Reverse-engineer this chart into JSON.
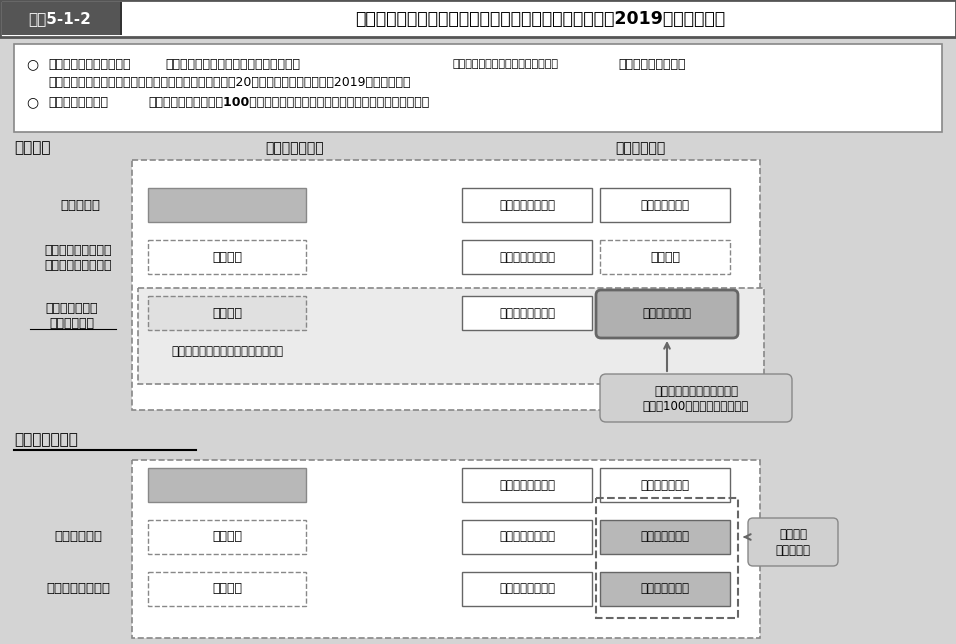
{
  "title_label": "図表5-1-2",
  "title_text": "国民年金第１号被保険者の産前産後期間の保険料免除（2019年４月施行）",
  "bg_color": "#d4d4d4",
  "white": "#ffffff",
  "box_gray": "#b8b8b8",
  "dark_box_gray": "#a0a0a0",
  "title_bg": "#555555",
  "section1_title": "国民年金",
  "hoken_header": "【保険料負担】",
  "nenkin_header": "【年金給付】",
  "row1_label": "全額納付者",
  "row2_line1": "【現行の免除制度】",
  "row2_line2": "（全額免除の場合）",
  "row3_line1": "産前産後期間の",
  "row3_line2": "保険料免除者",
  "row3_sublabel": "（世帯所得にかかわらず免除対象）",
  "kokko_text": "国庫負担分１／２",
  "hoken_text": "保険料分１／２",
  "menjo_text": "（免除）",
  "nashi_text": "（なし）",
  "callout_text1": "第１号被保険者全体で負担",
  "callout_text2": "（月額100円程度の追加負担）",
  "section2_title": "参考：厚生年金",
  "row4_label": "【産休免除】",
  "row5_label": "【３号被保険者】",
  "callout2_text1": "厚生年金",
  "callout2_text2": "全体で負担",
  "bullet1a": "次世代育成支援のため、",
  "bullet1b": "国民年金第１号被保険者の産前産後期間",
  "bullet1c": "（出産予定日の前月から４か月間）",
  "bullet1d": "の保険料を免除し、",
  "bullet1e": "免除期間は満額の基礎年金を保障する。（対象者：年間20万人程度の見込み）　【2019年４月施行】",
  "bullet2a": "この財源として、",
  "bullet2b": "国民年金保険料を月額100円程度引上げ、国民年金の被保険者全体で対応する。"
}
